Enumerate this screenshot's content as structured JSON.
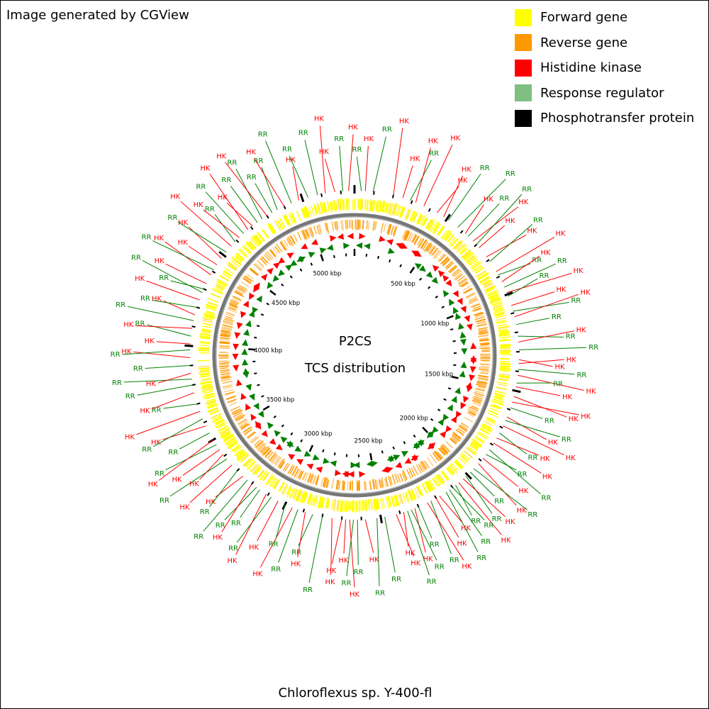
{
  "credit": "Image generated by CGView",
  "legend": [
    {
      "label": "Forward gene",
      "color": "#ffff00"
    },
    {
      "label": "Reverse gene",
      "color": "#ff9900"
    },
    {
      "label": "Histidine kinase",
      "color": "#ff0000"
    },
    {
      "label": "Response regulator",
      "color": "#7fbf7f"
    },
    {
      "label": "Phosphotransfer protein",
      "color": "#000000"
    }
  ],
  "center": {
    "title": "P2CS",
    "subtitle": "TCS distribution"
  },
  "organism": "Chloroflexus sp. Y-400-fl",
  "genome_length_kbp": 5270,
  "ruler_labels": [
    {
      "label": "500 kbp",
      "kbp": 500
    },
    {
      "label": "1000 kbp",
      "kbp": 1000
    },
    {
      "label": "1500 kbp",
      "kbp": 1500
    },
    {
      "label": "2000 kbp",
      "kbp": 2000
    },
    {
      "label": "2500 kbp",
      "kbp": 2500
    },
    {
      "label": "3000 kbp",
      "kbp": 3000
    },
    {
      "label": "3500 kbp",
      "kbp": 3500
    },
    {
      "label": "4000 kbp",
      "kbp": 4000
    },
    {
      "label": "4500 kbp",
      "kbp": 4500
    },
    {
      "label": "5000 kbp",
      "kbp": 5000
    }
  ],
  "tcs_genes": [
    {
      "label": "RR",
      "kbp": 35
    },
    {
      "label": "HK",
      "kbp": 55
    },
    {
      "label": "RR",
      "kbp": 95
    },
    {
      "label": "HK",
      "kbp": 200
    },
    {
      "label": "HK",
      "kbp": 250
    },
    {
      "label": "RR",
      "kbp": 290
    },
    {
      "label": "HK",
      "kbp": 320
    },
    {
      "label": "HK",
      "kbp": 365
    },
    {
      "label": "HK",
      "kbp": 440
    },
    {
      "label": "HK",
      "kbp": 480
    },
    {
      "label": "RR",
      "kbp": 510
    },
    {
      "label": "RR",
      "kbp": 570
    },
    {
      "label": "HK",
      "kbp": 620
    },
    {
      "label": "RR",
      "kbp": 640
    },
    {
      "label": "HK",
      "kbp": 675
    },
    {
      "label": "RR",
      "kbp": 700
    },
    {
      "label": "HK",
      "kbp": 720
    },
    {
      "label": "HK",
      "kbp": 780
    },
    {
      "label": "RR",
      "kbp": 810
    },
    {
      "label": "HK",
      "kbp": 870
    },
    {
      "label": "RR",
      "kbp": 890
    },
    {
      "label": "HK",
      "kbp": 930
    },
    {
      "label": "RR",
      "kbp": 960
    },
    {
      "label": "HK",
      "kbp": 990
    },
    {
      "label": "RR",
      "kbp": 1010
    },
    {
      "label": "HK",
      "kbp": 1060
    },
    {
      "label": "RR",
      "kbp": 1090
    },
    {
      "label": "HK",
      "kbp": 1120
    },
    {
      "label": "RR",
      "kbp": 1160
    },
    {
      "label": "RR",
      "kbp": 1220
    },
    {
      "label": "HK",
      "kbp": 1250
    },
    {
      "label": "RR",
      "kbp": 1290
    },
    {
      "label": "HK",
      "kbp": 1340
    },
    {
      "label": "HK",
      "kbp": 1360
    },
    {
      "label": "RR",
      "kbp": 1390
    },
    {
      "label": "HK",
      "kbp": 1420
    },
    {
      "label": "RR",
      "kbp": 1460
    },
    {
      "label": "HK",
      "kbp": 1480
    },
    {
      "label": "HK",
      "kbp": 1530
    },
    {
      "label": "HK",
      "kbp": 1560
    },
    {
      "label": "RR",
      "kbp": 1590
    },
    {
      "label": "HK",
      "kbp": 1640
    },
    {
      "label": "RR",
      "kbp": 1660
    },
    {
      "label": "HK",
      "kbp": 1690
    },
    {
      "label": "RR",
      "kbp": 1730
    },
    {
      "label": "HK",
      "kbp": 1760
    },
    {
      "label": "HK",
      "kbp": 1790
    },
    {
      "label": "RR",
      "kbp": 1830
    },
    {
      "label": "RR",
      "kbp": 1860
    },
    {
      "label": "HK",
      "kbp": 1885
    },
    {
      "label": "HK",
      "kbp": 1920
    },
    {
      "label": "RR",
      "kbp": 1955
    },
    {
      "label": "RR",
      "kbp": 1980
    },
    {
      "label": "RR",
      "kbp": 2010
    },
    {
      "label": "HK",
      "kbp": 2030
    },
    {
      "label": "HK",
      "kbp": 2060
    },
    {
      "label": "RR",
      "kbp": 2080
    },
    {
      "label": "RR",
      "kbp": 2100
    },
    {
      "label": "RR",
      "kbp": 2120
    },
    {
      "label": "RR",
      "kbp": 2140
    },
    {
      "label": "HK",
      "kbp": 2180
    },
    {
      "label": "HK",
      "kbp": 2200
    },
    {
      "label": "RR",
      "kbp": 2230
    },
    {
      "label": "HK",
      "kbp": 2250
    },
    {
      "label": "RR",
      "kbp": 2300
    },
    {
      "label": "HK",
      "kbp": 2320
    },
    {
      "label": "RR",
      "kbp": 2340
    },
    {
      "label": "RR",
      "kbp": 2360
    },
    {
      "label": "HK",
      "kbp": 2380
    },
    {
      "label": "HK",
      "kbp": 2420
    },
    {
      "label": "RR",
      "kbp": 2480
    },
    {
      "label": "RR",
      "kbp": 2520
    },
    {
      "label": "HK",
      "kbp": 2580
    },
    {
      "label": "RR",
      "kbp": 2620
    },
    {
      "label": "RR",
      "kbp": 2640
    },
    {
      "label": "HK",
      "kbp": 2660
    },
    {
      "label": "HK",
      "kbp": 2680
    },
    {
      "label": "HK",
      "kbp": 2700
    },
    {
      "label": "HK",
      "kbp": 2750
    },
    {
      "label": "RR",
      "kbp": 2800
    },
    {
      "label": "RR",
      "kbp": 2850
    },
    {
      "label": "HK",
      "kbp": 2890
    },
    {
      "label": "RR",
      "kbp": 2930
    },
    {
      "label": "HK",
      "kbp": 2960
    },
    {
      "label": "RR",
      "kbp": 3000
    },
    {
      "label": "HK",
      "kbp": 3040
    },
    {
      "label": "RR",
      "kbp": 3080
    },
    {
      "label": "HK",
      "kbp": 3110
    },
    {
      "label": "RR",
      "kbp": 3150
    },
    {
      "label": "RR",
      "kbp": 3170
    },
    {
      "label": "HK",
      "kbp": 3200
    },
    {
      "label": "RR",
      "kbp": 3230
    },
    {
      "label": "HK",
      "kbp": 3260
    },
    {
      "label": "RR",
      "kbp": 3300
    },
    {
      "label": "HK",
      "kbp": 3340
    },
    {
      "label": "RR",
      "kbp": 3380
    },
    {
      "label": "HK",
      "kbp": 3410
    },
    {
      "label": "HK",
      "kbp": 3440
    },
    {
      "label": "RR",
      "kbp": 3470
    },
    {
      "label": "HK",
      "kbp": 3500
    },
    {
      "label": "RR",
      "kbp": 3540
    },
    {
      "label": "HK",
      "kbp": 3580
    },
    {
      "label": "RR",
      "kbp": 3620
    },
    {
      "label": "HK",
      "kbp": 3660
    },
    {
      "label": "RR",
      "kbp": 3700
    },
    {
      "label": "HK",
      "kbp": 3760
    },
    {
      "label": "RR",
      "kbp": 3800
    },
    {
      "label": "RR",
      "kbp": 3830
    },
    {
      "label": "HK",
      "kbp": 3860
    },
    {
      "label": "RR",
      "kbp": 3900
    },
    {
      "label": "HK",
      "kbp": 3940
    },
    {
      "label": "RR",
      "kbp": 3980
    },
    {
      "label": "HK",
      "kbp": 4010
    },
    {
      "label": "RR",
      "kbp": 4050
    },
    {
      "label": "HK",
      "kbp": 4090
    },
    {
      "label": "RR",
      "kbp": 4130
    },
    {
      "label": "HK",
      "kbp": 4160
    },
    {
      "label": "RR",
      "kbp": 4200
    },
    {
      "label": "HK",
      "kbp": 4240
    },
    {
      "label": "RR",
      "kbp": 4280
    },
    {
      "label": "RR",
      "kbp": 4300
    },
    {
      "label": "HK",
      "kbp": 4330
    },
    {
      "label": "HK",
      "kbp": 4380
    },
    {
      "label": "RR",
      "kbp": 4410
    },
    {
      "label": "HK",
      "kbp": 4440
    },
    {
      "label": "HK",
      "kbp": 4480
    },
    {
      "label": "RR",
      "kbp": 4520
    },
    {
      "label": "HK",
      "kbp": 4560
    },
    {
      "label": "RR",
      "kbp": 4590
    },
    {
      "label": "HK",
      "kbp": 4620
    },
    {
      "label": "RR",
      "kbp": 4650
    },
    {
      "label": "HK",
      "kbp": 4680
    },
    {
      "label": "HK",
      "kbp": 4710
    },
    {
      "label": "RR",
      "kbp": 4740
    },
    {
      "label": "RR",
      "kbp": 4770
    },
    {
      "label": "HK",
      "kbp": 4800
    },
    {
      "label": "RR",
      "kbp": 4830
    },
    {
      "label": "RR",
      "kbp": 4860
    },
    {
      "label": "HK",
      "kbp": 4900
    },
    {
      "label": "RR",
      "kbp": 4940
    },
    {
      "label": "HK",
      "kbp": 4980
    },
    {
      "label": "RR",
      "kbp": 5030
    },
    {
      "label": "RR",
      "kbp": 5080
    },
    {
      "label": "HK",
      "kbp": 5120
    },
    {
      "label": "HK",
      "kbp": 5170
    },
    {
      "label": "RR",
      "kbp": 5210
    },
    {
      "label": "HK",
      "kbp": 5240
    }
  ]
}
